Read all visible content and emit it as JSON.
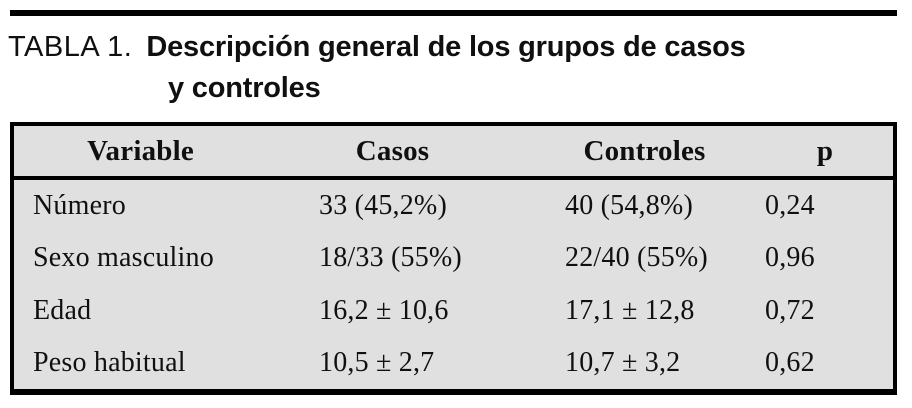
{
  "caption": {
    "label": "TABLA 1.",
    "line1": "Descripción general de los grupos de casos",
    "line2": "y controles"
  },
  "table": {
    "columns": [
      "Variable",
      "Casos",
      "Controles",
      "p"
    ],
    "rows": [
      {
        "variable": "Número",
        "casos": "33 (45,2%)",
        "controles": "40 (54,8%)",
        "p": "0,24"
      },
      {
        "variable": "Sexo masculino",
        "casos": "18/33 (55%)",
        "controles": "22/40 (55%)",
        "p": "0,96"
      },
      {
        "variable": "Edad",
        "casos": "16,2 ± 10,6",
        "controles": "17,1 ± 12,8",
        "p": "0,72"
      },
      {
        "variable": "Peso habitual",
        "casos": "10,5 ± 2,7",
        "controles": "10,7 ± 3,2",
        "p": "0,62"
      }
    ]
  },
  "colors": {
    "table_background": "#e0e0e0",
    "border": "#000000",
    "text": "#101010",
    "page_background": "#ffffff"
  }
}
